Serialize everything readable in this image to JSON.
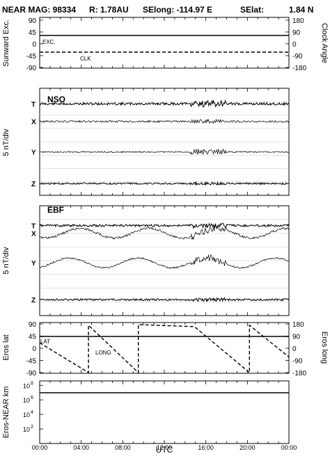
{
  "header": {
    "instrument": "NEAR MAG: 98334",
    "radius": "R: 1.78AU",
    "selong": "SElong: -114.97 E",
    "selat": "SElat:",
    "selat_value": "1.84 N"
  },
  "chart_data": [
    {
      "type": "line",
      "panel": "sunward-clock",
      "ylabel_left": "Sunward Exc.",
      "ylabel_right": "Clock Angle",
      "left_ticks": [
        "90",
        "45",
        "0",
        "-45",
        "-90"
      ],
      "right_ticks": [
        "180",
        "90",
        "0",
        "-90",
        "-180"
      ],
      "ylim": [
        -90,
        90
      ],
      "series": [
        {
          "name": "EXC.",
          "style": "solid",
          "x": [
            0,
            24
          ],
          "y": [
            27,
            27
          ]
        },
        {
          "name": "CLK",
          "style": "dashed",
          "x": [
            0,
            24
          ],
          "y": [
            -34,
            -34
          ]
        }
      ]
    },
    {
      "type": "line",
      "panel": "NSO",
      "title": "NSO",
      "ylabel": "5 nT/div",
      "series": [
        {
          "name": "T",
          "baseline": 0.145,
          "amp": 0.45,
          "burst": 0.9
        },
        {
          "name": "X",
          "baseline": 0.31,
          "amp": 0.35,
          "burst": 0.6
        },
        {
          "name": "Y",
          "baseline": 0.595,
          "amp": 0.25,
          "burst": 1.0
        },
        {
          "name": "Z",
          "baseline": 0.89,
          "amp": 0.3,
          "burst": 0.4
        }
      ]
    },
    {
      "type": "line",
      "panel": "EBF",
      "title": "EBF",
      "ylabel": "5 nT/div",
      "series": [
        {
          "name": "T",
          "baseline": 0.18,
          "amp": 0.4,
          "burst": 0.7
        },
        {
          "name": "X",
          "baseline": 0.25,
          "amp": 0.4,
          "burst": 0.9
        },
        {
          "name": "Y",
          "baseline": 0.52,
          "amp": 0.3,
          "burst": 1.0
        },
        {
          "name": "Z",
          "baseline": 0.855,
          "amp": 0.35,
          "burst": 0.5
        }
      ]
    },
    {
      "type": "line",
      "panel": "eros-position",
      "ylabel_left": "Eros lat",
      "ylabel_right": "Eros long",
      "left_ticks": [
        "90",
        "45",
        "0",
        "-45",
        "-90"
      ],
      "right_ticks": [
        "180",
        "90",
        "0",
        "-90",
        "-180"
      ],
      "ylim": [
        -90,
        90
      ],
      "series": [
        {
          "name": "LAT",
          "style": "solid",
          "x": [
            0,
            24
          ],
          "y": [
            40,
            40
          ]
        },
        {
          "name": "LONG",
          "style": "dashed",
          "units": "deg long",
          "x": [
            0,
            4.7,
            4.7,
            9.5,
            9.5,
            14.9,
            20.2,
            20.2,
            24
          ],
          "y": [
            40,
            -180,
            170,
            -180,
            175,
            160,
            -180,
            170,
            -65
          ]
        }
      ]
    },
    {
      "type": "line",
      "panel": "eros-near-distance",
      "ylabel": "Eros-NEAR km",
      "scale": "log",
      "tick_exponents": [
        8,
        6,
        4,
        2
      ],
      "ylim_exp": [
        0,
        8
      ],
      "series": [
        {
          "name": "distance",
          "style": "solid",
          "x": [
            0,
            24
          ],
          "y_exp": [
            6.1,
            6.1
          ]
        }
      ]
    }
  ],
  "x_axis": {
    "label": "UTC",
    "ticks": [
      "00:00",
      "04:00",
      "08:00",
      "12:00",
      "16:00",
      "20:00",
      "00:00"
    ],
    "range": [
      0,
      24
    ]
  }
}
